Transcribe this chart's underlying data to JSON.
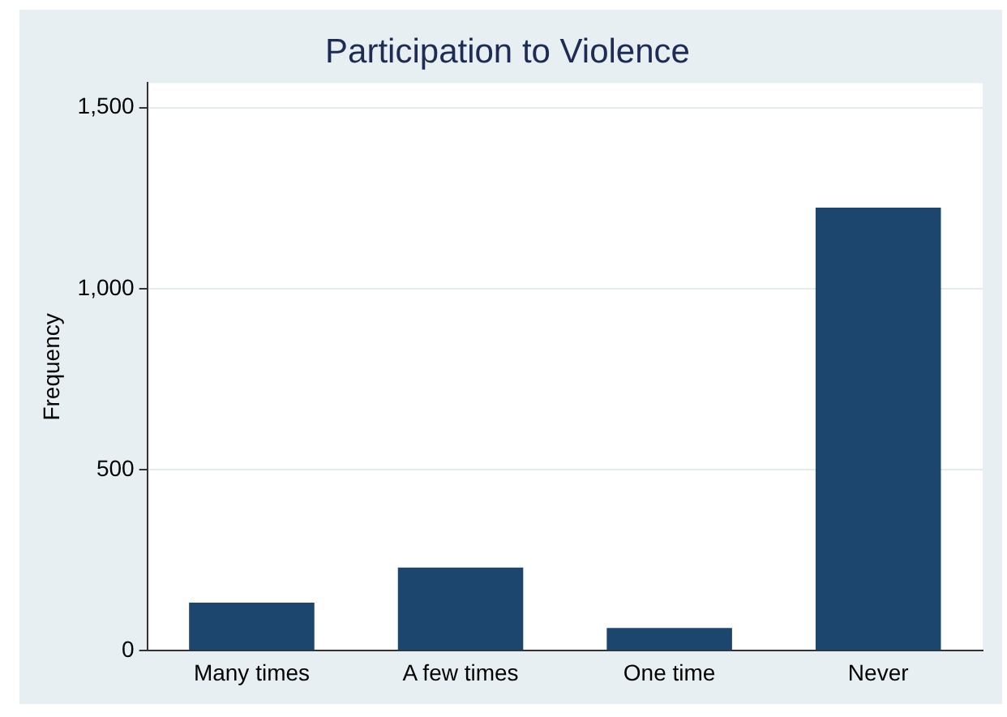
{
  "chart_data": {
    "type": "bar",
    "title": "Participation to Violence",
    "ylabel": "Frequency",
    "categories": [
      "Many times",
      "A few times",
      "One time",
      "Never"
    ],
    "values": [
      133,
      230,
      63,
      1224
    ],
    "color": "#1c466e",
    "ylim": [
      0,
      1568
    ],
    "yticks": [
      {
        "value": 0,
        "label": "0"
      },
      {
        "value": 500,
        "label": "500"
      },
      {
        "value": 1000,
        "label": "1,000"
      },
      {
        "value": 1500,
        "label": "1,500"
      }
    ],
    "grid": "y",
    "legend": false
  }
}
